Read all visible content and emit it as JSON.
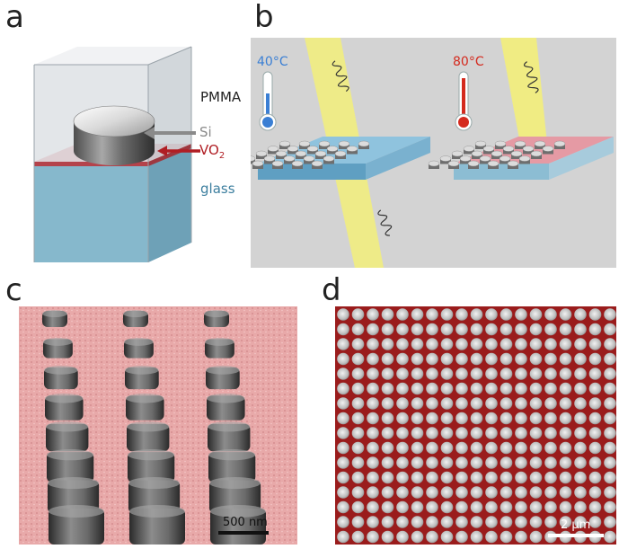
{
  "panels": {
    "a": {
      "letter": "a",
      "labels": {
        "top_layer": "PMMA",
        "pillar": "Si",
        "film": "VO",
        "film_subscript": "2",
        "substrate": "glass"
      }
    },
    "b": {
      "letter": "b",
      "cold": {
        "temperature": "40°C",
        "color": "#3a7fd4"
      },
      "hot": {
        "temperature": "80°C",
        "color": "#d42a1e"
      }
    },
    "c": {
      "letter": "c",
      "scale_bar": "500 nm"
    },
    "d": {
      "letter": "d",
      "scale_bar": "2 μm"
    }
  },
  "colors": {
    "pmma": "#d7dce0",
    "vo2": "#e59aa0",
    "glass": "#7fb1c6",
    "arrow_si": "#8a8a8a",
    "arrow_vo2": "#b01e24",
    "panel_b_bg": "#d3d3d3",
    "beam": "#f6f06a",
    "sem_c_bg": "#e8a9a9",
    "sem_d_bg": "#9a1c1c"
  }
}
